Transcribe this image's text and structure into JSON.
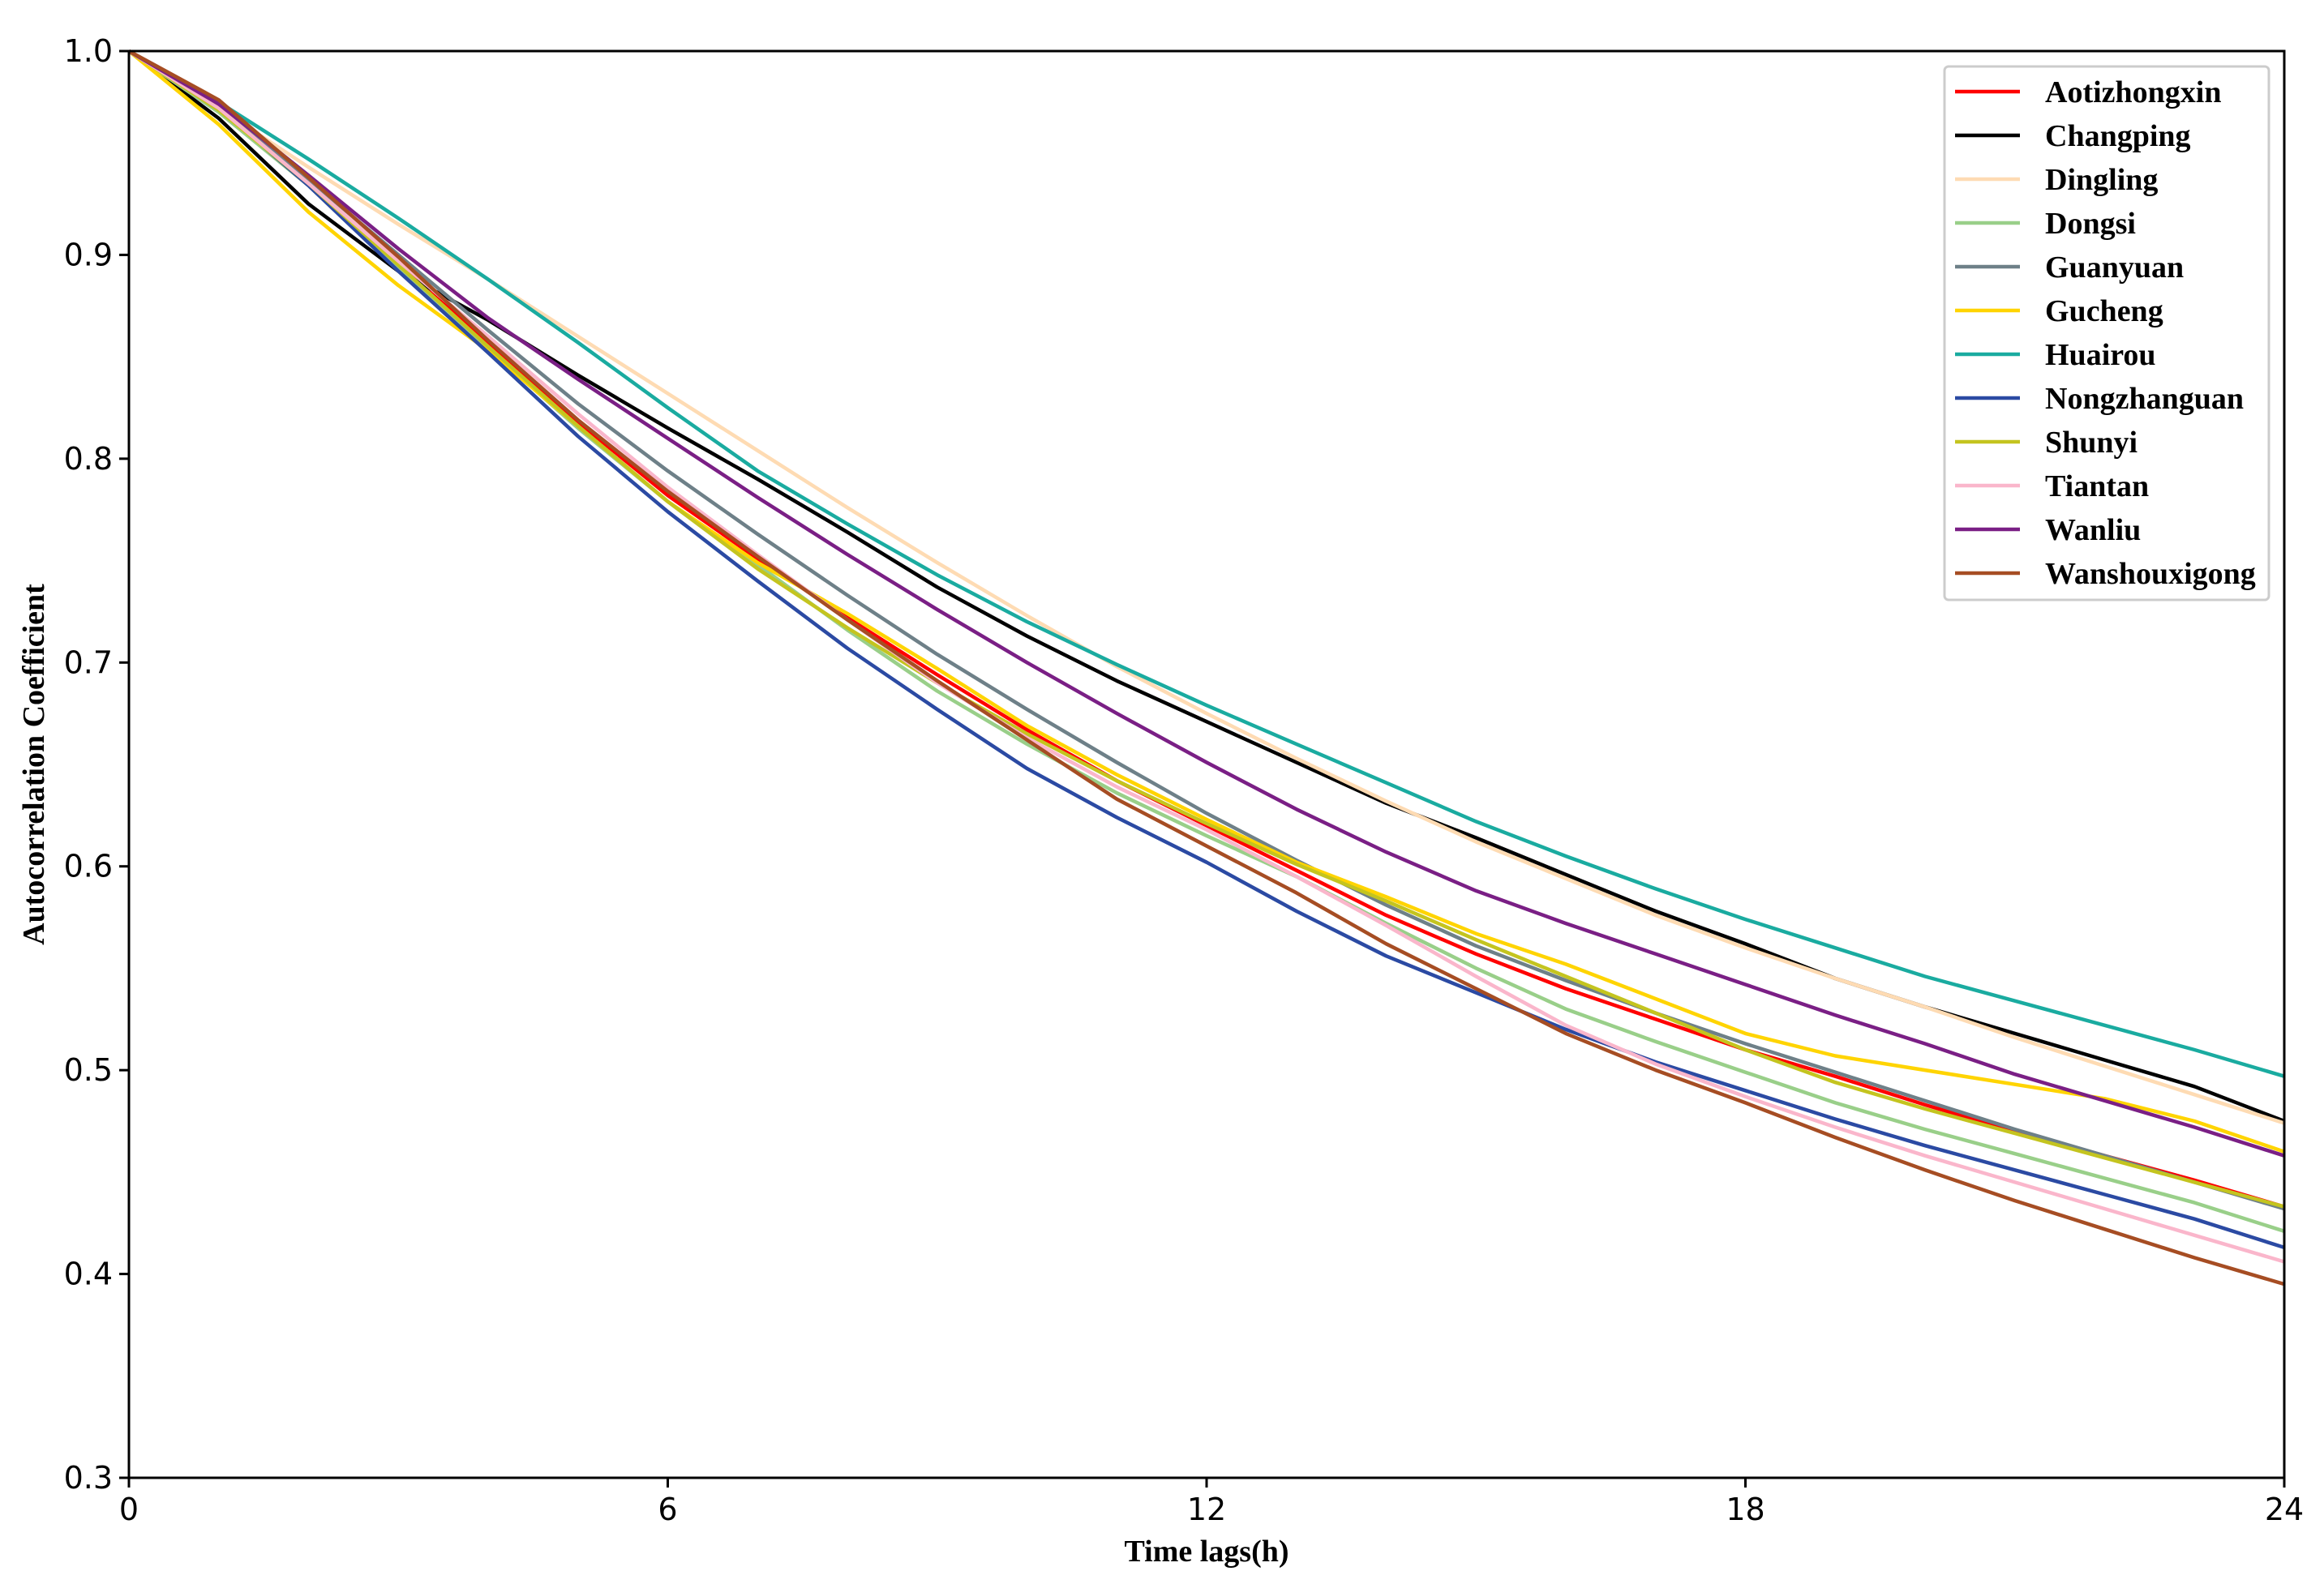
{
  "chart_data": {
    "type": "line",
    "title": "",
    "xlabel": "Time lags(h)",
    "ylabel": "Autocorrelation Coefficient",
    "xlim": [
      0,
      24
    ],
    "ylim": [
      0.3,
      1.0
    ],
    "x_ticks": [
      "0",
      "6",
      "12",
      "18",
      "24"
    ],
    "y_ticks": [
      "0.3",
      "0.4",
      "0.5",
      "0.6",
      "0.7",
      "0.8",
      "0.9",
      "1.0"
    ],
    "grid": false,
    "legend_position": "top-right",
    "x": [
      0,
      1,
      2,
      3,
      4,
      5,
      6,
      7,
      8,
      9,
      10,
      11,
      12,
      13,
      14,
      15,
      16,
      17,
      18,
      19,
      20,
      21,
      22,
      23,
      24
    ],
    "series": [
      {
        "name": "Aotizhongxin",
        "color": "#ff0000",
        "values": [
          1.0,
          0.972,
          0.935,
          0.895,
          0.857,
          0.818,
          0.782,
          0.751,
          0.722,
          0.694,
          0.667,
          0.642,
          0.62,
          0.598,
          0.576,
          0.557,
          0.54,
          0.525,
          0.51,
          0.497,
          0.483,
          0.47,
          0.458,
          0.446,
          0.433
        ]
      },
      {
        "name": "Changping",
        "color": "#000000",
        "values": [
          1.0,
          0.967,
          0.925,
          0.892,
          0.868,
          0.841,
          0.815,
          0.79,
          0.764,
          0.737,
          0.713,
          0.691,
          0.671,
          0.651,
          0.631,
          0.614,
          0.596,
          0.578,
          0.562,
          0.545,
          0.531,
          0.518,
          0.505,
          0.492,
          0.475
        ]
      },
      {
        "name": "Dingling",
        "color": "#fedbb3",
        "values": [
          1.0,
          0.972,
          0.943,
          0.915,
          0.888,
          0.86,
          0.832,
          0.804,
          0.776,
          0.749,
          0.723,
          0.698,
          0.675,
          0.653,
          0.632,
          0.612,
          0.594,
          0.576,
          0.56,
          0.545,
          0.531,
          0.516,
          0.502,
          0.488,
          0.474
        ]
      },
      {
        "name": "Dongsi",
        "color": "#99cf89",
        "values": [
          1.0,
          0.97,
          0.934,
          0.893,
          0.854,
          0.815,
          0.779,
          0.748,
          0.716,
          0.686,
          0.66,
          0.636,
          0.615,
          0.595,
          0.572,
          0.55,
          0.53,
          0.514,
          0.499,
          0.484,
          0.471,
          0.459,
          0.447,
          0.435,
          0.421
        ]
      },
      {
        "name": "Guanyuan",
        "color": "#6e8088",
        "values": [
          1.0,
          0.972,
          0.937,
          0.9,
          0.863,
          0.827,
          0.794,
          0.763,
          0.733,
          0.704,
          0.677,
          0.651,
          0.626,
          0.603,
          0.581,
          0.561,
          0.544,
          0.528,
          0.513,
          0.499,
          0.485,
          0.471,
          0.458,
          0.445,
          0.432
        ]
      },
      {
        "name": "Gucheng",
        "color": "#ffd400",
        "values": [
          1.0,
          0.964,
          0.921,
          0.885,
          0.853,
          0.816,
          0.779,
          0.749,
          0.724,
          0.697,
          0.669,
          0.645,
          0.623,
          0.602,
          0.585,
          0.567,
          0.552,
          0.535,
          0.518,
          0.507,
          0.5,
          0.493,
          0.486,
          0.475,
          0.46
        ]
      },
      {
        "name": "Huairou",
        "color": "#1aaba0",
        "values": [
          1.0,
          0.975,
          0.947,
          0.918,
          0.888,
          0.857,
          0.825,
          0.794,
          0.768,
          0.743,
          0.72,
          0.699,
          0.679,
          0.66,
          0.641,
          0.622,
          0.605,
          0.589,
          0.574,
          0.56,
          0.546,
          0.534,
          0.522,
          0.51,
          0.497
        ]
      },
      {
        "name": "Nongzhanguan",
        "color": "#2b4aa3",
        "values": [
          1.0,
          0.972,
          0.934,
          0.892,
          0.852,
          0.811,
          0.774,
          0.74,
          0.707,
          0.677,
          0.648,
          0.624,
          0.602,
          0.578,
          0.556,
          0.538,
          0.52,
          0.504,
          0.49,
          0.476,
          0.463,
          0.451,
          0.439,
          0.427,
          0.413
        ]
      },
      {
        "name": "Shunyi",
        "color": "#c4c41f",
        "values": [
          1.0,
          0.971,
          0.935,
          0.895,
          0.855,
          0.816,
          0.779,
          0.746,
          0.717,
          0.69,
          0.665,
          0.642,
          0.621,
          0.601,
          0.583,
          0.564,
          0.546,
          0.528,
          0.51,
          0.494,
          0.481,
          0.469,
          0.457,
          0.445,
          0.433
        ]
      },
      {
        "name": "Tiantan",
        "color": "#fab6cb",
        "values": [
          1.0,
          0.972,
          0.935,
          0.897,
          0.86,
          0.822,
          0.786,
          0.753,
          0.721,
          0.69,
          0.663,
          0.639,
          0.618,
          0.595,
          0.571,
          0.546,
          0.522,
          0.503,
          0.487,
          0.472,
          0.458,
          0.445,
          0.432,
          0.419,
          0.406
        ]
      },
      {
        "name": "Wanliu",
        "color": "#7a1f85",
        "values": [
          1.0,
          0.974,
          0.939,
          0.903,
          0.869,
          0.839,
          0.81,
          0.781,
          0.753,
          0.726,
          0.7,
          0.675,
          0.651,
          0.628,
          0.607,
          0.588,
          0.572,
          0.557,
          0.542,
          0.527,
          0.513,
          0.498,
          0.485,
          0.472,
          0.458
        ]
      },
      {
        "name": "Wanshouxigong",
        "color": "#a64d23",
        "values": [
          1.0,
          0.976,
          0.938,
          0.899,
          0.858,
          0.819,
          0.784,
          0.752,
          0.721,
          0.691,
          0.662,
          0.633,
          0.61,
          0.587,
          0.562,
          0.54,
          0.518,
          0.5,
          0.484,
          0.467,
          0.451,
          0.436,
          0.422,
          0.408,
          0.395
        ]
      }
    ]
  }
}
